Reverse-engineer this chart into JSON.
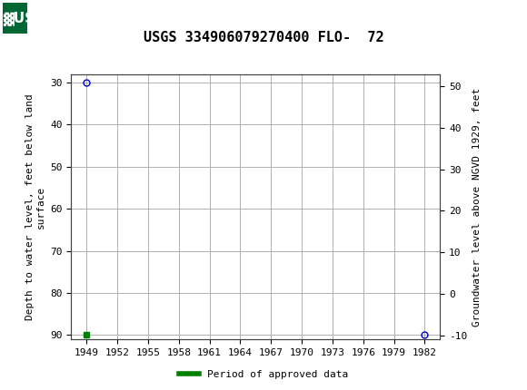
{
  "title": "USGS 334906079270400 FLO-  72",
  "header_color": "#006633",
  "background_color": "#ffffff",
  "plot_bg_color": "#ffffff",
  "grid_color": "#b0b0b0",
  "ylabel_left": "Depth to water level, feet below land\nsurface",
  "ylabel_right": "Groundwater level above NGVD 1929, feet",
  "xlim": [
    1947.5,
    1983.5
  ],
  "xticks": [
    1949,
    1952,
    1955,
    1958,
    1961,
    1964,
    1967,
    1970,
    1973,
    1976,
    1979,
    1982
  ],
  "ylim_left": [
    91,
    28
  ],
  "yticks_left": [
    30,
    40,
    50,
    60,
    70,
    80,
    90
  ],
  "ylim_right": [
    -11,
    53
  ],
  "yticks_right": [
    -10,
    0,
    10,
    20,
    30,
    40,
    50
  ],
  "data_points_x": [
    1949,
    1982
  ],
  "data_points_y": [
    30,
    90
  ],
  "point_color": "#0000cc",
  "point_marker": "o",
  "point_size": 5,
  "approved_x": [
    1949
  ],
  "approved_y": [
    90
  ],
  "approved_color": "#008000",
  "approved_marker": "s",
  "approved_size": 4,
  "legend_label": "Period of approved data",
  "legend_color": "#008000",
  "title_fontsize": 11,
  "axis_label_fontsize": 8,
  "tick_fontsize": 8,
  "legend_fontsize": 8
}
